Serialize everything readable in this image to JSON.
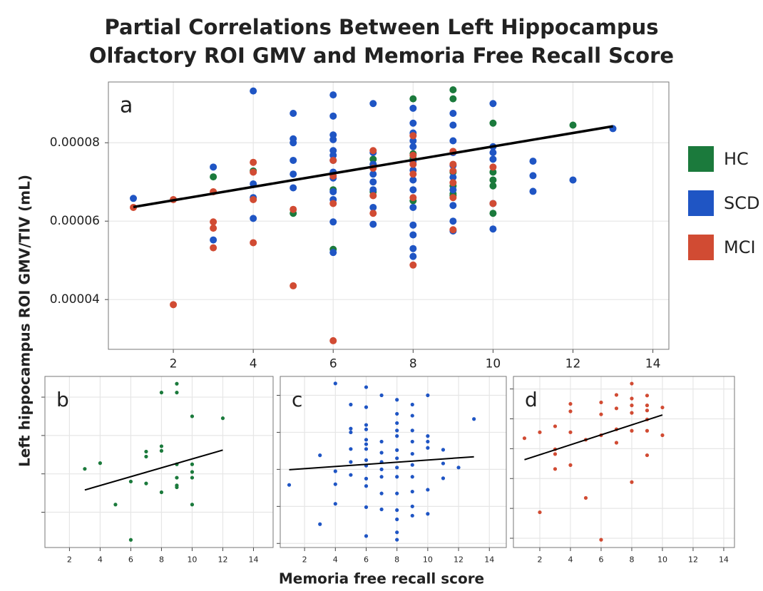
{
  "title_lines": [
    "Partial Correlations Between Left Hippocampus",
    "Olfactory ROI GMV and Memoria Free Recall Score"
  ],
  "y_label": "Left hippocampus ROI GMV/TIV (mL)",
  "x_label": "Memoria free recall score",
  "chart_data": [
    {
      "type": "scatter",
      "panel_label": "a",
      "grid": true,
      "show_ytick_labels": true,
      "legend": "right",
      "xlim": [
        0.375,
        14.4
      ],
      "ylim": [
        2.73e-05,
        9.55e-05
      ],
      "xticks": [
        2,
        4,
        6,
        8,
        10,
        12,
        14
      ],
      "yticks": [
        4e-05,
        6e-05,
        8e-05
      ],
      "fit": {
        "x": [
          1,
          13
        ],
        "y": [
          6.36e-05,
          8.42e-05
        ]
      },
      "series": [
        {
          "name": "HC",
          "color": "#1b7a3c",
          "x": [
            3,
            4,
            5,
            6,
            6,
            7,
            7,
            7,
            8,
            8,
            8,
            8,
            9,
            9,
            9,
            9,
            9,
            9,
            10,
            10,
            10,
            10,
            10,
            12
          ],
          "values": [
            7.13e-05,
            7.28e-05,
            6.2e-05,
            5.28e-05,
            6.8e-05,
            7.58e-05,
            7.45e-05,
            6.75e-05,
            9.12e-05,
            7.72e-05,
            7.6e-05,
            6.52e-05,
            9.35e-05,
            9.12e-05,
            7.25e-05,
            6.9e-05,
            6.7e-05,
            6.65e-05,
            8.5e-05,
            7.25e-05,
            7.05e-05,
            6.9e-05,
            6.2e-05,
            8.45e-05
          ]
        },
        {
          "name": "SCD",
          "color": "#1f55c4",
          "x": [
            1,
            3,
            3,
            4,
            4,
            4,
            4,
            5,
            5,
            5,
            5,
            5,
            5,
            6,
            6,
            6,
            6,
            6,
            6,
            6,
            6,
            6,
            6,
            6,
            6,
            6,
            7,
            7,
            7,
            7,
            7,
            7,
            7,
            7,
            8,
            8,
            8,
            8,
            8,
            8,
            8,
            8,
            8,
            8,
            8,
            8,
            8,
            8,
            9,
            9,
            9,
            9,
            9,
            9,
            9,
            9,
            9,
            9,
            10,
            10,
            10,
            10,
            10,
            10,
            11,
            11,
            11,
            12,
            13
          ],
          "values": [
            6.58e-05,
            7.38e-05,
            5.52e-05,
            9.32e-05,
            6.95e-05,
            6.6e-05,
            6.07e-05,
            8.75e-05,
            8.1e-05,
            8e-05,
            7.55e-05,
            7.2e-05,
            6.85e-05,
            9.22e-05,
            8.68e-05,
            8.2e-05,
            8.08e-05,
            7.8e-05,
            7.68e-05,
            7.55e-05,
            7.25e-05,
            7.1e-05,
            6.75e-05,
            6.55e-05,
            5.98e-05,
            5.2e-05,
            9e-05,
            7.75e-05,
            7.45e-05,
            7.2e-05,
            7e-05,
            6.8e-05,
            6.35e-05,
            5.92e-05,
            8.88e-05,
            8.5e-05,
            8.25e-05,
            8.05e-05,
            7.9e-05,
            7.52e-05,
            7.3e-05,
            7.05e-05,
            6.8e-05,
            6.35e-05,
            5.9e-05,
            5.65e-05,
            5.3e-05,
            5.1e-05,
            8.75e-05,
            8.45e-05,
            8.05e-05,
            7.75e-05,
            7.42e-05,
            7.12e-05,
            6.8e-05,
            6.4e-05,
            6e-05,
            5.75e-05,
            9e-05,
            7.9e-05,
            7.75e-05,
            7.58e-05,
            6.45e-05,
            5.8e-05,
            7.53e-05,
            7.16e-05,
            6.76e-05,
            7.05e-05,
            8.36e-05
          ]
        },
        {
          "name": "MCI",
          "color": "#d14b33",
          "x": [
            1,
            2,
            2,
            3,
            3,
            3,
            3,
            4,
            4,
            4,
            4,
            5,
            5,
            6,
            6,
            6,
            6,
            7,
            7,
            7,
            7,
            8,
            8,
            8,
            8,
            8,
            8,
            9,
            9,
            9,
            9,
            9,
            9,
            10,
            10
          ],
          "values": [
            6.35e-05,
            6.55e-05,
            3.87e-05,
            6.75e-05,
            5.98e-05,
            5.82e-05,
            5.32e-05,
            7.5e-05,
            7.25e-05,
            6.55e-05,
            5.45e-05,
            6.3e-05,
            4.35e-05,
            7.55e-05,
            7.15e-05,
            6.45e-05,
            2.95e-05,
            7.8e-05,
            7.35e-05,
            6.65e-05,
            6.2e-05,
            8.18e-05,
            7.68e-05,
            7.45e-05,
            7.2e-05,
            6.6e-05,
            4.88e-05,
            7.78e-05,
            7.45e-05,
            7.28e-05,
            6.98e-05,
            6.6e-05,
            5.78e-05,
            7.38e-05,
            6.45e-05
          ]
        }
      ]
    },
    {
      "type": "scatter",
      "panel_label": "b",
      "grid": true,
      "show_ytick_labels": false,
      "xlim": [
        0.4,
        15.28
      ],
      "ylim": [
        5.08e-05,
        9.54e-05
      ],
      "xticks": [
        2,
        4,
        6,
        8,
        10,
        12,
        14
      ],
      "yticks": [
        6e-05,
        7e-05,
        8e-05,
        9e-05
      ],
      "fit": {
        "x": [
          3,
          12
        ],
        "y": [
          6.58e-05,
          7.62e-05
        ]
      },
      "series": [
        {
          "color": "#1b7a3c",
          "x": [
            3,
            4,
            5,
            6,
            6,
            7,
            7,
            7,
            8,
            8,
            8,
            8,
            9,
            9,
            9,
            9,
            9,
            9,
            10,
            10,
            10,
            10,
            10,
            12
          ],
          "values": [
            7.13e-05,
            7.28e-05,
            6.2e-05,
            5.28e-05,
            6.8e-05,
            7.58e-05,
            7.45e-05,
            6.75e-05,
            9.12e-05,
            7.72e-05,
            7.6e-05,
            6.52e-05,
            9.35e-05,
            9.12e-05,
            7.25e-05,
            6.9e-05,
            6.7e-05,
            6.65e-05,
            8.5e-05,
            7.25e-05,
            7.05e-05,
            6.9e-05,
            6.2e-05,
            8.45e-05
          ]
        }
      ]
    },
    {
      "type": "scatter",
      "panel_label": "c",
      "grid": true,
      "show_ytick_labels": false,
      "xlim": [
        0.42,
        15.1
      ],
      "ylim": [
        4.89e-05,
        9.51e-05
      ],
      "xticks": [
        2,
        4,
        6,
        8,
        10,
        12,
        14
      ],
      "yticks": [
        5e-05,
        6e-05,
        7e-05,
        8e-05,
        9e-05
      ],
      "fit": {
        "x": [
          1,
          13
        ],
        "y": [
          6.99e-05,
          7.34e-05
        ]
      },
      "series": [
        {
          "color": "#1f55c4",
          "x": [
            1,
            3,
            3,
            4,
            4,
            4,
            4,
            5,
            5,
            5,
            5,
            5,
            5,
            6,
            6,
            6,
            6,
            6,
            6,
            6,
            6,
            6,
            6,
            6,
            6,
            6,
            7,
            7,
            7,
            7,
            7,
            7,
            7,
            7,
            8,
            8,
            8,
            8,
            8,
            8,
            8,
            8,
            8,
            8,
            8,
            8,
            8,
            8,
            9,
            9,
            9,
            9,
            9,
            9,
            9,
            9,
            9,
            9,
            10,
            10,
            10,
            10,
            10,
            10,
            11,
            11,
            11,
            12,
            13
          ],
          "values": [
            6.58e-05,
            7.38e-05,
            5.52e-05,
            9.32e-05,
            6.95e-05,
            6.6e-05,
            6.07e-05,
            8.75e-05,
            8.1e-05,
            8e-05,
            7.55e-05,
            7.2e-05,
            6.85e-05,
            9.22e-05,
            8.68e-05,
            8.2e-05,
            8.08e-05,
            7.8e-05,
            7.68e-05,
            7.55e-05,
            7.25e-05,
            7.1e-05,
            6.75e-05,
            6.55e-05,
            5.98e-05,
            5.2e-05,
            9e-05,
            7.75e-05,
            7.45e-05,
            7.2e-05,
            7e-05,
            6.8e-05,
            6.35e-05,
            5.92e-05,
            8.88e-05,
            8.5e-05,
            8.25e-05,
            8.05e-05,
            7.9e-05,
            7.52e-05,
            7.3e-05,
            7.05e-05,
            6.8e-05,
            6.35e-05,
            5.9e-05,
            5.65e-05,
            5.3e-05,
            5.1e-05,
            8.75e-05,
            8.45e-05,
            8.05e-05,
            7.75e-05,
            7.42e-05,
            7.12e-05,
            6.8e-05,
            6.4e-05,
            6e-05,
            5.75e-05,
            9e-05,
            7.9e-05,
            7.75e-05,
            7.58e-05,
            6.45e-05,
            5.8e-05,
            7.53e-05,
            7.16e-05,
            6.76e-05,
            7.05e-05,
            8.36e-05
          ]
        }
      ]
    },
    {
      "type": "scatter",
      "panel_label": "d",
      "grid": true,
      "show_ytick_labels": false,
      "xlim": [
        0.28,
        14.7
      ],
      "ylim": [
        2.69e-05,
        8.42e-05
      ],
      "xticks": [
        2,
        4,
        6,
        8,
        10,
        12,
        14
      ],
      "yticks": [
        3e-05,
        4e-05,
        5e-05,
        6e-05,
        7e-05,
        8e-05
      ],
      "fit": {
        "x": [
          1,
          10
        ],
        "y": [
          5.63e-05,
          7.13e-05
        ]
      },
      "series": [
        {
          "color": "#d14b33",
          "x": [
            1,
            2,
            2,
            3,
            3,
            3,
            3,
            4,
            4,
            4,
            4,
            5,
            5,
            6,
            6,
            6,
            6,
            7,
            7,
            7,
            7,
            8,
            8,
            8,
            8,
            8,
            8,
            9,
            9,
            9,
            9,
            9,
            9,
            10,
            10
          ],
          "values": [
            6.35e-05,
            6.55e-05,
            3.87e-05,
            6.75e-05,
            5.98e-05,
            5.82e-05,
            5.32e-05,
            7.5e-05,
            7.25e-05,
            6.55e-05,
            5.45e-05,
            6.3e-05,
            4.35e-05,
            7.55e-05,
            7.15e-05,
            6.45e-05,
            2.95e-05,
            7.8e-05,
            7.35e-05,
            6.65e-05,
            6.2e-05,
            8.18e-05,
            7.68e-05,
            7.45e-05,
            7.2e-05,
            6.6e-05,
            4.88e-05,
            7.78e-05,
            7.45e-05,
            7.28e-05,
            6.98e-05,
            6.6e-05,
            5.78e-05,
            7.38e-05,
            6.45e-05
          ]
        }
      ]
    }
  ]
}
